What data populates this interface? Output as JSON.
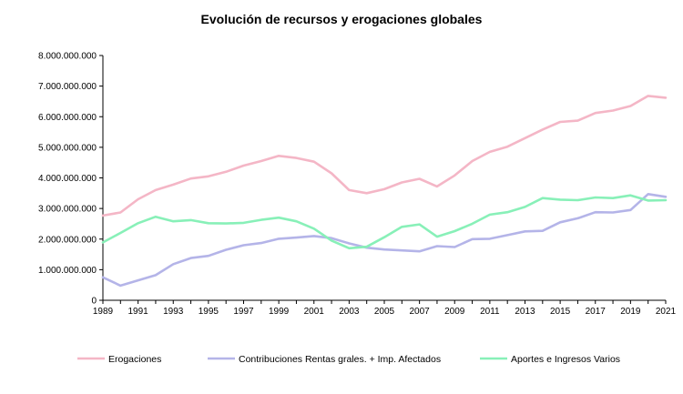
{
  "chart_data": {
    "type": "line",
    "title": "Evolución de recursos y erogaciones globales",
    "xlabel": "",
    "ylabel": "",
    "x": [
      1989,
      1990,
      1991,
      1992,
      1993,
      1994,
      1995,
      1996,
      1997,
      1998,
      1999,
      2000,
      2001,
      2002,
      2003,
      2004,
      2005,
      2006,
      2007,
      2008,
      2009,
      2010,
      2011,
      2012,
      2013,
      2014,
      2015,
      2016,
      2017,
      2018,
      2019,
      2020,
      2021
    ],
    "x_tick_labels": [
      "1989",
      "1991",
      "1993",
      "1995",
      "1997",
      "1999",
      "2001",
      "2003",
      "2005",
      "2007",
      "2009",
      "2011",
      "2013",
      "2015",
      "2017",
      "2019",
      "2021"
    ],
    "x_tick_values": [
      1989,
      1991,
      1993,
      1995,
      1997,
      1999,
      2001,
      2003,
      2005,
      2007,
      2009,
      2011,
      2013,
      2015,
      2017,
      2019,
      2021
    ],
    "ylim": [
      0,
      8000000000
    ],
    "y_ticks": [
      0,
      1000000000,
      2000000000,
      3000000000,
      4000000000,
      5000000000,
      6000000000,
      7000000000,
      8000000000
    ],
    "y_tick_labels": [
      "0",
      "1.000.000.000",
      "2.000.000.000",
      "3.000.000.000",
      "4.000.000.000",
      "5.000.000.000",
      "6.000.000.000",
      "7.000.000.000",
      "8.000.000.000"
    ],
    "grid": false,
    "legend_position": "bottom",
    "series": [
      {
        "name": "Erogaciones",
        "color": "#f4b6c6",
        "values": [
          2770000000,
          2870000000,
          3300000000,
          3600000000,
          3780000000,
          3980000000,
          4050000000,
          4200000000,
          4400000000,
          4550000000,
          4720000000,
          4650000000,
          4530000000,
          4150000000,
          3600000000,
          3500000000,
          3630000000,
          3850000000,
          3970000000,
          3720000000,
          4080000000,
          4550000000,
          4850000000,
          5020000000,
          5300000000,
          5580000000,
          5830000000,
          5870000000,
          6120000000,
          6200000000,
          6350000000,
          6680000000,
          6620000000
        ]
      },
      {
        "name": "Contribuciones Rentas grales. + Imp. Afectados",
        "color": "#b4b4e8",
        "values": [
          750000000,
          480000000,
          650000000,
          820000000,
          1180000000,
          1380000000,
          1450000000,
          1650000000,
          1800000000,
          1870000000,
          2010000000,
          2050000000,
          2100000000,
          2030000000,
          1860000000,
          1720000000,
          1660000000,
          1630000000,
          1600000000,
          1770000000,
          1740000000,
          2000000000,
          2010000000,
          2130000000,
          2250000000,
          2270000000,
          2550000000,
          2680000000,
          2880000000,
          2870000000,
          2950000000,
          3470000000,
          3380000000
        ]
      },
      {
        "name": "Aportes e Ingresos Varios",
        "color": "#88f0b8",
        "values": [
          1890000000,
          2200000000,
          2520000000,
          2730000000,
          2580000000,
          2620000000,
          2520000000,
          2510000000,
          2530000000,
          2630000000,
          2700000000,
          2580000000,
          2340000000,
          1950000000,
          1700000000,
          1750000000,
          2060000000,
          2400000000,
          2480000000,
          2080000000,
          2260000000,
          2500000000,
          2800000000,
          2880000000,
          3050000000,
          3340000000,
          3290000000,
          3270000000,
          3360000000,
          3340000000,
          3430000000,
          3260000000,
          3270000000
        ]
      }
    ]
  }
}
